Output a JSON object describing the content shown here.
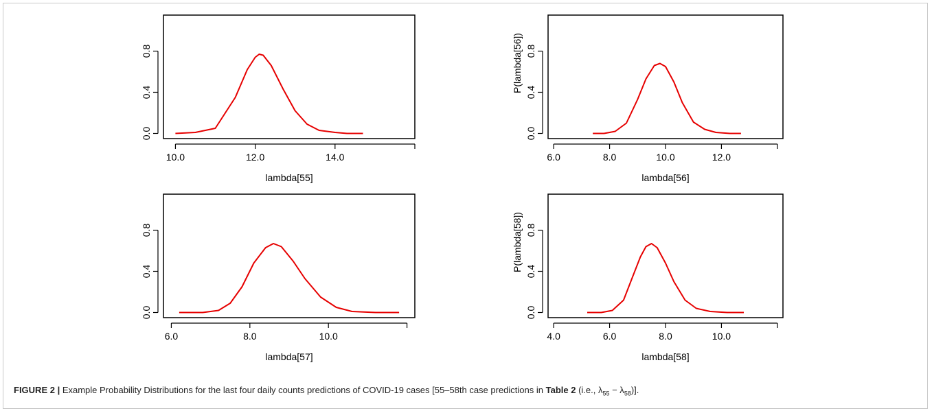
{
  "chart_data": [
    {
      "type": "line",
      "title": "",
      "xlabel": "lambda[55]",
      "ylabel": "",
      "xlim": [
        9.7,
        16.0
      ],
      "ylim": [
        -0.05,
        1.15
      ],
      "xticks": [
        10.0,
        12.0,
        14.0,
        16.0
      ],
      "xtick_labels": [
        "10.0",
        "12.0",
        "14.0",
        ""
      ],
      "yticks": [
        0.0,
        0.4,
        0.8
      ],
      "ytick_labels": [
        "0.0",
        "0.4",
        "0.8"
      ],
      "color": "#e60000",
      "series": [
        {
          "x": [
            10.0,
            10.5,
            11.0,
            11.5,
            11.8,
            12.0,
            12.1,
            12.2,
            12.4,
            12.7,
            13.0,
            13.3,
            13.6,
            14.0,
            14.3,
            14.7
          ],
          "y": [
            0.0,
            0.01,
            0.05,
            0.35,
            0.62,
            0.74,
            0.77,
            0.76,
            0.66,
            0.43,
            0.22,
            0.09,
            0.03,
            0.01,
            0.0,
            0.0
          ]
        }
      ]
    },
    {
      "type": "line",
      "title": "",
      "xlabel": "lambda[56]",
      "ylabel": "P(lambda[56])",
      "xlim": [
        5.8,
        14.2
      ],
      "ylim": [
        -0.05,
        1.15
      ],
      "xticks": [
        6.0,
        8.0,
        10.0,
        12.0,
        14.0
      ],
      "xtick_labels": [
        "6.0",
        "8.0",
        "10.0",
        "12.0",
        ""
      ],
      "yticks": [
        0.0,
        0.4,
        0.8
      ],
      "ytick_labels": [
        "0.0",
        "0.4",
        "0.8"
      ],
      "color": "#e60000",
      "series": [
        {
          "x": [
            7.4,
            7.8,
            8.2,
            8.6,
            9.0,
            9.3,
            9.6,
            9.8,
            10.0,
            10.3,
            10.6,
            11.0,
            11.4,
            11.8,
            12.3,
            12.7
          ],
          "y": [
            0.0,
            0.0,
            0.02,
            0.1,
            0.33,
            0.53,
            0.66,
            0.68,
            0.65,
            0.5,
            0.3,
            0.11,
            0.04,
            0.01,
            0.0,
            0.0
          ]
        }
      ]
    },
    {
      "type": "line",
      "title": "",
      "xlabel": "lambda[57]",
      "ylabel": "",
      "xlim": [
        5.8,
        12.2
      ],
      "ylim": [
        -0.05,
        1.15
      ],
      "xticks": [
        6.0,
        8.0,
        10.0,
        12.0
      ],
      "xtick_labels": [
        "6.0",
        "8.0",
        "10.0",
        ""
      ],
      "yticks": [
        0.0,
        0.4,
        0.8
      ],
      "ytick_labels": [
        "0.0",
        "0.4",
        "0.8"
      ],
      "color": "#e60000",
      "series": [
        {
          "x": [
            6.2,
            6.8,
            7.2,
            7.5,
            7.8,
            8.1,
            8.4,
            8.6,
            8.8,
            9.1,
            9.4,
            9.8,
            10.2,
            10.6,
            11.2,
            11.8
          ],
          "y": [
            0.0,
            0.0,
            0.02,
            0.09,
            0.25,
            0.48,
            0.63,
            0.67,
            0.64,
            0.5,
            0.33,
            0.15,
            0.05,
            0.01,
            0.0,
            0.0
          ]
        }
      ]
    },
    {
      "type": "line",
      "title": "",
      "xlabel": "lambda[58]",
      "ylabel": "P(lambda[58])",
      "xlim": [
        3.8,
        12.2
      ],
      "ylim": [
        -0.05,
        1.15
      ],
      "xticks": [
        4.0,
        6.0,
        8.0,
        10.0,
        12.0
      ],
      "xtick_labels": [
        "4.0",
        "6.0",
        "8.0",
        "10.0",
        ""
      ],
      "yticks": [
        0.0,
        0.4,
        0.8
      ],
      "ytick_labels": [
        "0.0",
        "0.4",
        "0.8"
      ],
      "color": "#e60000",
      "series": [
        {
          "x": [
            5.2,
            5.7,
            6.1,
            6.5,
            6.8,
            7.1,
            7.3,
            7.5,
            7.7,
            8.0,
            8.3,
            8.7,
            9.1,
            9.6,
            10.2,
            10.8
          ],
          "y": [
            0.0,
            0.0,
            0.02,
            0.12,
            0.33,
            0.54,
            0.64,
            0.67,
            0.63,
            0.48,
            0.3,
            0.12,
            0.04,
            0.01,
            0.0,
            0.0
          ]
        }
      ]
    }
  ],
  "caption": {
    "label": "FIGURE 2 |",
    "text_before": " Example Probability Distributions for the last four daily counts predictions of COVID-19 cases [55–58th case predictions in ",
    "table_ref": "Table 2",
    "text_mid": " (i.e., λ",
    "sub1": "55",
    "text_dash": " − λ",
    "sub2": "58",
    "text_end": ")]."
  }
}
